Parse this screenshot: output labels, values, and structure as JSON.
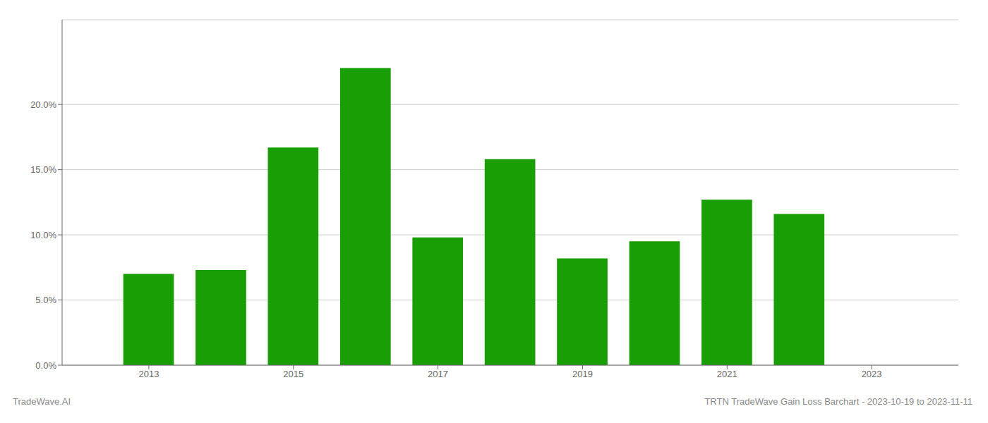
{
  "chart_data": {
    "type": "bar",
    "x": [
      2013,
      2014,
      2015,
      2016,
      2017,
      2018,
      2019,
      2020,
      2021,
      2022
    ],
    "values": [
      0.07,
      0.073,
      0.167,
      0.228,
      0.098,
      0.158,
      0.082,
      0.095,
      0.127,
      0.116
    ],
    "color": "#1a9e06",
    "xlim": [
      2011.8,
      2024.2
    ],
    "xticks": [
      2013,
      2015,
      2017,
      2019,
      2021,
      2023
    ],
    "ylim": [
      0,
      0.265
    ],
    "yticks": [
      {
        "value": 0,
        "label": "0.0%"
      },
      {
        "value": 0.05,
        "label": "5.0%"
      },
      {
        "value": 0.1,
        "label": "10.0%"
      },
      {
        "value": 0.15,
        "label": "15.0%"
      },
      {
        "value": 0.2,
        "label": "20.0%"
      }
    ],
    "grid": true,
    "annotations": [
      "TradeWave.AI",
      "TRTN TradeWave Gain Loss Barchart - 2023-10-19 to 2023-11-11"
    ]
  }
}
